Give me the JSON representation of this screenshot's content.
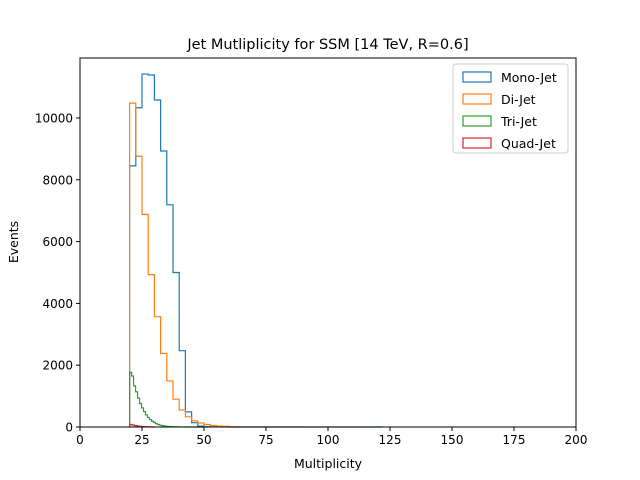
{
  "chart_data": {
    "type": "histogram",
    "title": "Jet Mutliplicity for SSM [14 TeV, R=0.6]",
    "xlabel": "Multiplicity",
    "ylabel": "Events",
    "xlim": [
      0,
      200
    ],
    "ylim": [
      0,
      11940
    ],
    "xticks": [
      0,
      25,
      50,
      75,
      100,
      125,
      150,
      175,
      200
    ],
    "yticks": [
      0,
      2000,
      4000,
      6000,
      8000,
      10000
    ],
    "grid": false,
    "legend_position": "top-right",
    "series": [
      {
        "name": "Mono-Jet",
        "color": "#1f77b4",
        "edges": [
          20,
          22.5,
          25,
          27.5,
          30,
          32.5,
          35,
          37.5,
          40,
          42.5,
          45,
          47.5,
          50,
          52.5,
          55,
          57.5,
          60,
          62.5,
          65,
          67.5,
          70,
          122
        ],
        "counts": [
          8450,
          10330,
          11420,
          11390,
          10580,
          8930,
          7190,
          5000,
          2470,
          490,
          140,
          30,
          10,
          5,
          3,
          2,
          1,
          1,
          1,
          1,
          0
        ]
      },
      {
        "name": "Di-Jet",
        "color": "#ff7f0e",
        "edges": [
          20,
          22.5,
          25,
          27.5,
          30,
          32.5,
          35,
          37.5,
          40,
          42.5,
          45,
          47.5,
          50,
          52.5,
          55,
          57.5,
          60,
          62.5,
          65,
          90
        ],
        "counts": [
          10480,
          8760,
          6880,
          4930,
          3570,
          2380,
          1490,
          900,
          550,
          330,
          200,
          130,
          80,
          50,
          30,
          20,
          10,
          5,
          2
        ]
      },
      {
        "name": "Tri-Jet",
        "color": "#2ca02c",
        "edges": [
          20,
          20.8,
          21.6,
          22.4,
          23.2,
          24,
          24.8,
          25.6,
          26.4,
          27.2,
          28,
          28.8,
          29.6,
          30.4,
          31.2,
          32,
          32.8,
          33.6,
          34.4,
          35.2,
          36,
          36.8,
          37.6,
          38.4,
          39.2,
          40,
          42,
          45,
          50
        ],
        "counts": [
          1770,
          1650,
          1330,
          1140,
          930,
          760,
          620,
          500,
          390,
          310,
          240,
          190,
          150,
          110,
          80,
          60,
          45,
          35,
          25,
          18,
          12,
          8,
          6,
          4,
          3,
          2,
          1,
          0
        ]
      },
      {
        "name": "Quad-Jet",
        "color": "#d62728",
        "edges": [
          20,
          21,
          22,
          23,
          24,
          25,
          26,
          27,
          28,
          29,
          30
        ],
        "counts": [
          80,
          60,
          45,
          30,
          20,
          12,
          8,
          5,
          3,
          1
        ]
      }
    ]
  }
}
